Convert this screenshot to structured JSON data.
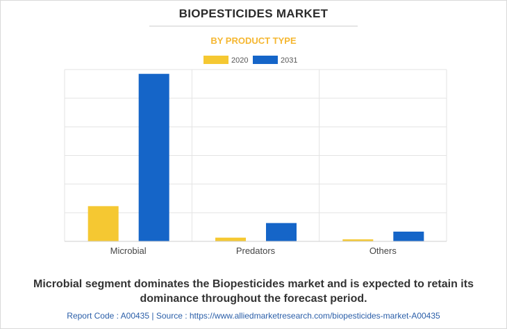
{
  "title": "BIOPESTICIDES MARKET",
  "subtitle": "BY PRODUCT TYPE",
  "caption": "Microbial segment dominates the Biopesticides market and is expected to retain its dominance throughout the forecast period.",
  "footer": {
    "report_code": "Report Code : A00435",
    "separator": "|",
    "source": "Source : https://www.alliedmarketresearch.com/biopesticides-market-A00435"
  },
  "colors": {
    "2020": "#f5c832",
    "2031": "#1565c8"
  },
  "chart_data": {
    "type": "bar",
    "categories": [
      "Microbial",
      "Predators",
      "Others"
    ],
    "series": [
      {
        "name": "2020",
        "values": [
          12.3,
          1.3,
          0.7
        ]
      },
      {
        "name": "2031",
        "values": [
          58.5,
          6.4,
          3.4
        ]
      }
    ],
    "ylim": [
      0,
      60
    ],
    "y_gridlines": [
      0,
      10,
      20,
      30,
      40,
      50,
      60
    ],
    "y_tick_labels_shown": false,
    "grid": true,
    "legend_placement": "top-center",
    "xlabel": "",
    "ylabel": ""
  }
}
